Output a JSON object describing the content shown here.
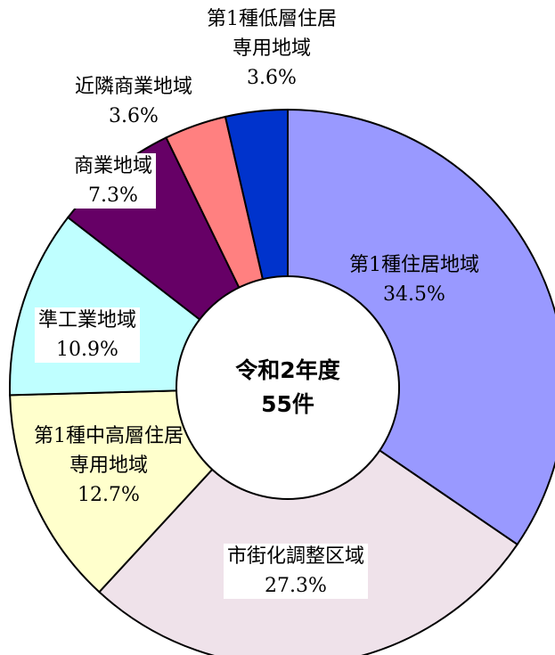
{
  "chart_data": {
    "type": "pie",
    "categories": [
      "第1種住居地域",
      "市街化調整区域",
      "第1種中高層住居\n専用地域",
      "準工業地域",
      "商業地域",
      "近隣商業地域",
      "第1種低層住居\n専用地域"
    ],
    "values": [
      34.5,
      27.3,
      12.7,
      10.9,
      7.3,
      3.6,
      3.6
    ],
    "value_labels": [
      "34.5%",
      "27.3%",
      "12.7%",
      "10.9%",
      "7.3%",
      "3.6%",
      "3.6%"
    ],
    "colors": [
      "#9999ff",
      "#efe2ea",
      "#ffffcc",
      "#bfffff",
      "#660066",
      "#ff8080",
      "#0033cc"
    ],
    "annotations": [
      "令和2年度",
      "55件"
    ]
  }
}
